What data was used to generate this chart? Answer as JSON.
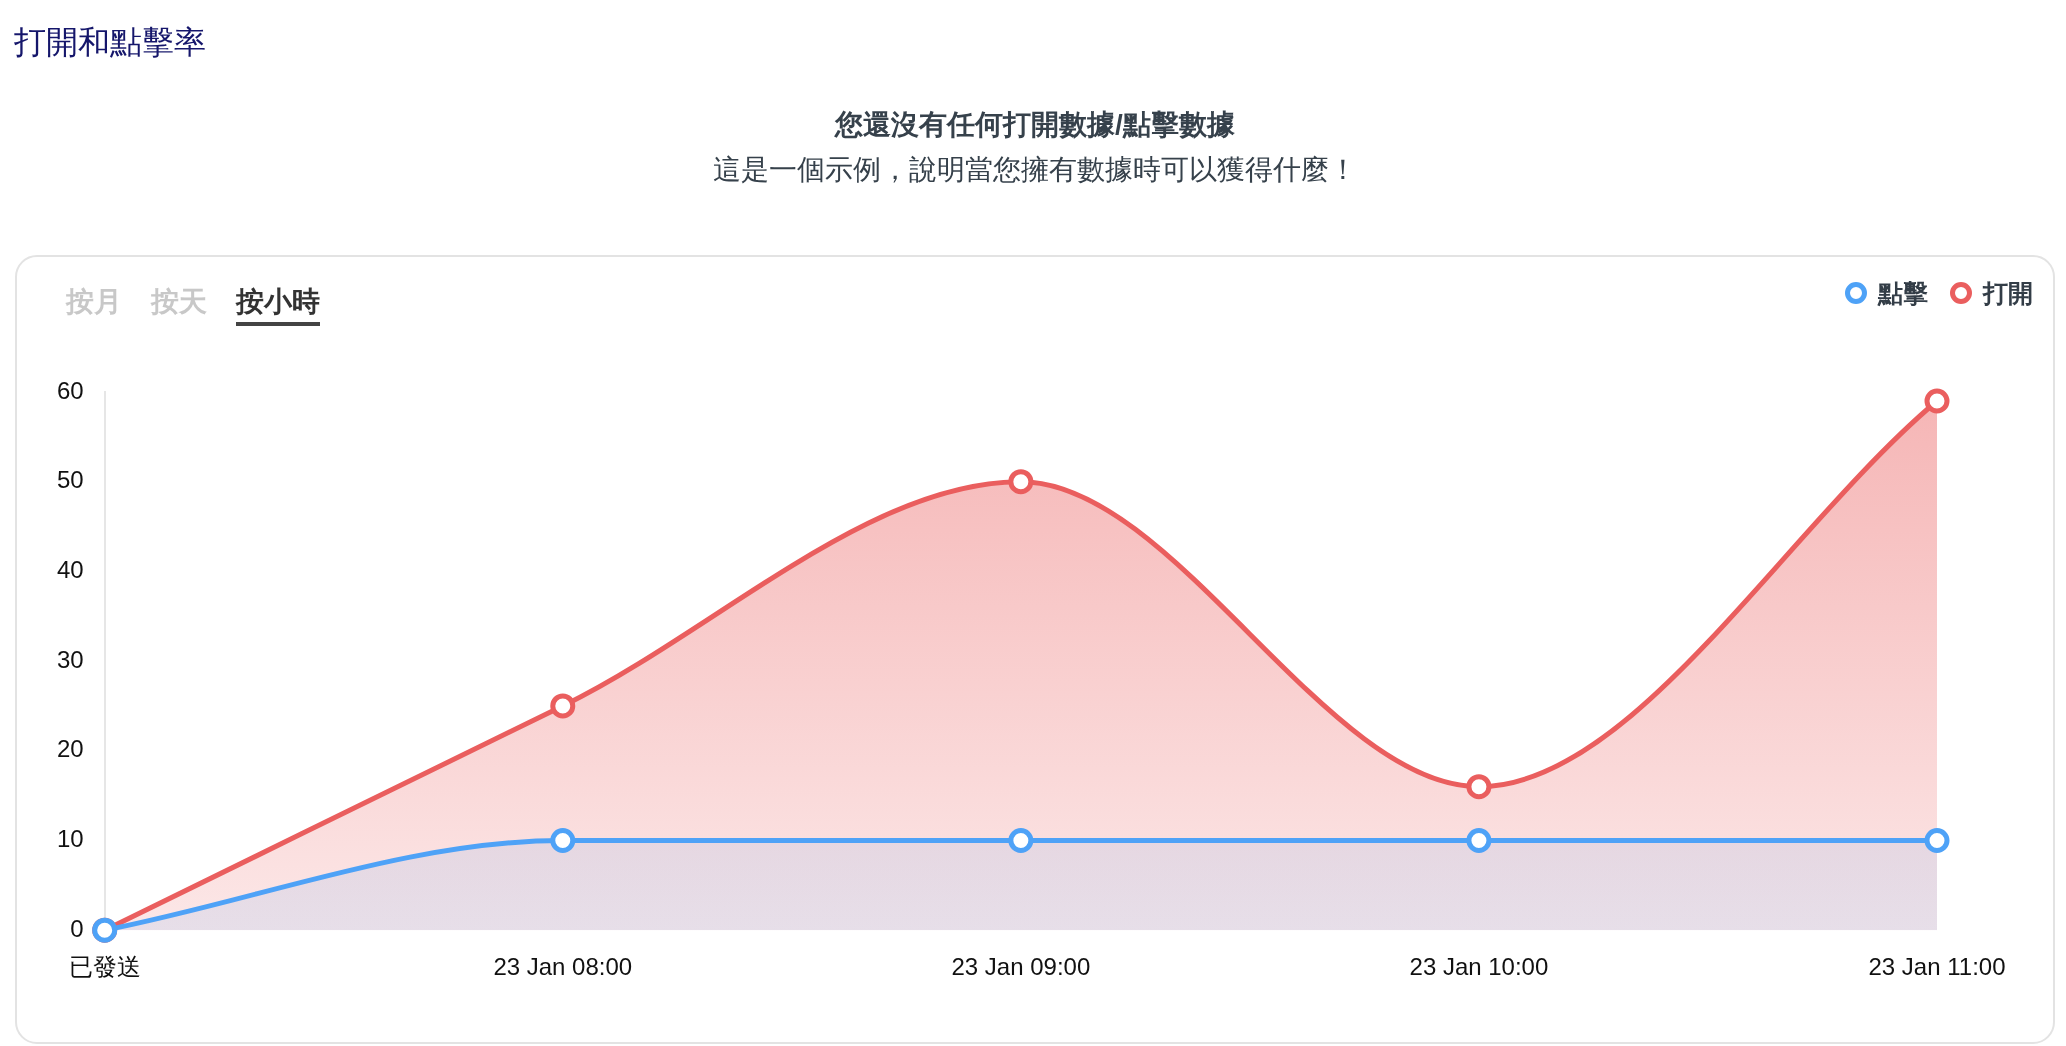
{
  "chart_data": {
    "type": "area",
    "title": "打開和點擊率",
    "subtitle": "您還沒有任何打開數據/點擊數據",
    "annotations": [
      "這是一個示例，說明當您擁有數據時可以獲得什麼！",
      "按月",
      "按天",
      "按小時"
    ],
    "categories": [
      "已發送",
      "23 Jan 08:00",
      "23 Jan 09:00",
      "23 Jan 10:00",
      "23 Jan 11:00"
    ],
    "series": [
      {
        "name": "點擊",
        "color": "#4ea2f7",
        "values": [
          0,
          10,
          10,
          10,
          10
        ]
      },
      {
        "name": "打開",
        "color": "#ea5e5e",
        "values": [
          0,
          25,
          50,
          16,
          59
        ]
      }
    ],
    "ylim": [
      0,
      60
    ],
    "yticks": [
      0,
      10,
      20,
      30,
      40,
      50,
      60
    ],
    "legend": "top right",
    "marker": "circle"
  }
}
